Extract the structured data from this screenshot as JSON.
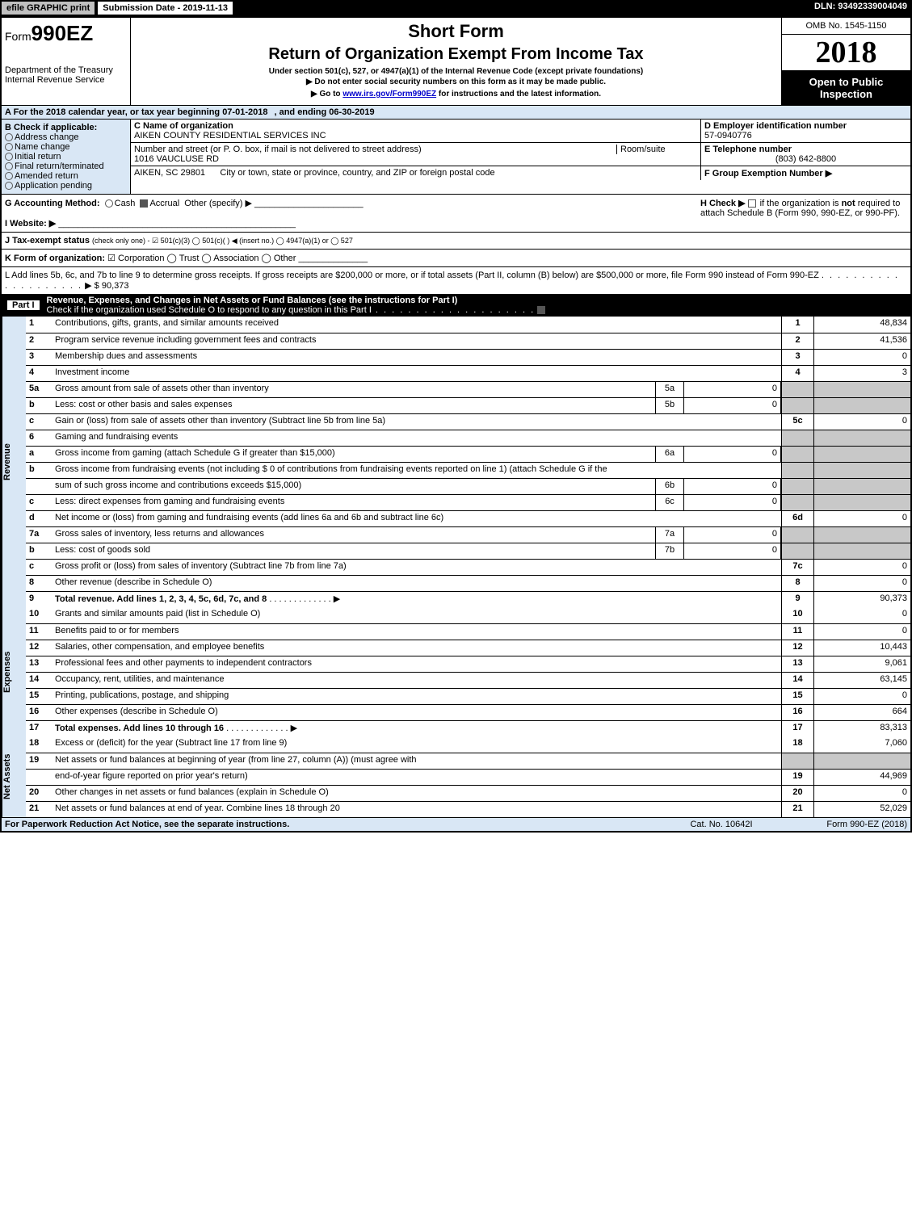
{
  "top": {
    "print": "efile GRAPHIC print",
    "sub_date_label": "Submission Date - 2019-11-13",
    "dln": "DLN: 93492339004049"
  },
  "header": {
    "form_prefix": "Form",
    "form_num": "990EZ",
    "short_form": "Short Form",
    "title": "Return of Organization Exempt From Income Tax",
    "subtitle": "Under section 501(c), 527, or 4947(a)(1) of the Internal Revenue Code (except private foundations)",
    "dept1": "Department of the Treasury",
    "dept2": "Internal Revenue Service",
    "notice1": "▶ Do not enter social security numbers on this form as it may be made public.",
    "notice2_pre": "▶ Go to ",
    "notice2_link": "www.irs.gov/Form990EZ",
    "notice2_post": " for instructions and the latest information.",
    "omb": "OMB No. 1545-1150",
    "year": "2018",
    "open": "Open to Public Inspection"
  },
  "lineA": {
    "label": "A  For the 2018 calendar year, or tax year beginning 07-01-2018",
    "ending": ", and ending 06-30-2019"
  },
  "sectionB": {
    "title": "B  Check if applicable:",
    "items": [
      "Address change",
      "Name change",
      "Initial return",
      "Final return/terminated",
      "Amended return",
      "Application pending"
    ]
  },
  "org": {
    "c_label": "C Name of organization",
    "name": "AIKEN COUNTY RESIDENTIAL SERVICES INC",
    "street_label": "Number and street (or P. O. box, if mail is not delivered to street address)",
    "street": "1016 VAUCLUSE RD",
    "room_label": "Room/suite",
    "city_label": "City or town, state or province, country, and ZIP or foreign postal code",
    "city": "AIKEN, SC  29801"
  },
  "right": {
    "d_label": "D Employer identification number",
    "d_val": "57-0940776",
    "e_label": "E Telephone number",
    "e_val": "(803) 642-8800",
    "f_label": "F Group Exemption Number ▶"
  },
  "g": {
    "label": "G Accounting Method:",
    "cash": "Cash",
    "accrual": "Accrual",
    "other": "Other (specify) ▶"
  },
  "h": {
    "label": "H  Check ▶",
    "txt1": "if the organization is ",
    "not": "not",
    "txt2": " required to attach Schedule B (Form 990, 990-EZ, or 990-PF)."
  },
  "i": {
    "label": "I Website: ▶"
  },
  "j": {
    "label": "J Tax-exempt status",
    "txt": "(check only one) -  ☑ 501(c)(3)  ◯ 501(c)(  ) ◀ (insert no.)  ◯ 4947(a)(1) or  ◯ 527"
  },
  "k": {
    "label": "K Form of organization:",
    "txt": "☑ Corporation   ◯ Trust   ◯ Association   ◯ Other"
  },
  "l": {
    "txt": "L Add lines 5b, 6c, and 7b to line 9 to determine gross receipts. If gross receipts are $200,000 or more, or if total assets (Part II, column (B) below) are $500,000 or more, file Form 990 instead of Form 990-EZ",
    "amount": "▶ $ 90,373"
  },
  "part1": {
    "label": "Part I",
    "title": "Revenue, Expenses, and Changes in Net Assets or Fund Balances (see the instructions for Part I)",
    "sub": "Check if the organization used Schedule O to respond to any question in this Part I"
  },
  "sections": {
    "revenue": "Revenue",
    "expenses": "Expenses",
    "netassets": "Net Assets"
  },
  "rows": [
    {
      "n": "1",
      "desc": "Contributions, gifts, grants, and similar amounts received",
      "box": "1",
      "val": "48,834"
    },
    {
      "n": "2",
      "desc": "Program service revenue including government fees and contracts",
      "box": "2",
      "val": "41,536"
    },
    {
      "n": "3",
      "desc": "Membership dues and assessments",
      "box": "3",
      "val": "0"
    },
    {
      "n": "4",
      "desc": "Investment income",
      "box": "4",
      "val": "3"
    },
    {
      "n": "5a",
      "desc": "Gross amount from sale of assets other than inventory",
      "in": "5a",
      "inval": "0"
    },
    {
      "n": "b",
      "desc": "Less: cost or other basis and sales expenses",
      "in": "5b",
      "inval": "0"
    },
    {
      "n": "c",
      "desc": "Gain or (loss) from sale of assets other than inventory (Subtract line 5b from line 5a)",
      "box": "5c",
      "val": "0"
    },
    {
      "n": "6",
      "desc": "Gaming and fundraising events"
    },
    {
      "n": "a",
      "desc": "Gross income from gaming (attach Schedule G if greater than $15,000)",
      "in": "6a",
      "inval": "0"
    },
    {
      "n": "b",
      "desc": "Gross income from fundraising events (not including $  0          of contributions from fundraising events reported on line 1) (attach Schedule G if the"
    },
    {
      "n": "",
      "desc": "sum of such gross income and contributions exceeds $15,000)",
      "in": "6b",
      "inval": "0"
    },
    {
      "n": "c",
      "desc": "Less: direct expenses from gaming and fundraising events",
      "in": "6c",
      "inval": "0"
    },
    {
      "n": "d",
      "desc": "Net income or (loss) from gaming and fundraising events (add lines 6a and 6b and subtract line 6c)",
      "box": "6d",
      "val": "0"
    },
    {
      "n": "7a",
      "desc": "Gross sales of inventory, less returns and allowances",
      "in": "7a",
      "inval": "0"
    },
    {
      "n": "b",
      "desc": "Less: cost of goods sold",
      "in": "7b",
      "inval": "0"
    },
    {
      "n": "c",
      "desc": "Gross profit or (loss) from sales of inventory (Subtract line 7b from line 7a)",
      "box": "7c",
      "val": "0"
    },
    {
      "n": "8",
      "desc": "Other revenue (describe in Schedule O)",
      "box": "8",
      "val": "0"
    },
    {
      "n": "9",
      "desc": "Total revenue. Add lines 1, 2, 3, 4, 5c, 6d, 7c, and 8",
      "box": "9",
      "val": "90,373",
      "bold": true,
      "arrow": true
    }
  ],
  "exp_rows": [
    {
      "n": "10",
      "desc": "Grants and similar amounts paid (list in Schedule O)",
      "box": "10",
      "val": "0"
    },
    {
      "n": "11",
      "desc": "Benefits paid to or for members",
      "box": "11",
      "val": "0"
    },
    {
      "n": "12",
      "desc": "Salaries, other compensation, and employee benefits",
      "box": "12",
      "val": "10,443"
    },
    {
      "n": "13",
      "desc": "Professional fees and other payments to independent contractors",
      "box": "13",
      "val": "9,061"
    },
    {
      "n": "14",
      "desc": "Occupancy, rent, utilities, and maintenance",
      "box": "14",
      "val": "63,145"
    },
    {
      "n": "15",
      "desc": "Printing, publications, postage, and shipping",
      "box": "15",
      "val": "0"
    },
    {
      "n": "16",
      "desc": "Other expenses (describe in Schedule O)",
      "box": "16",
      "val": "664"
    },
    {
      "n": "17",
      "desc": "Total expenses. Add lines 10 through 16",
      "box": "17",
      "val": "83,313",
      "bold": true,
      "arrow": true
    }
  ],
  "na_rows": [
    {
      "n": "18",
      "desc": "Excess or (deficit) for the year (Subtract line 17 from line 9)",
      "box": "18",
      "val": "7,060"
    },
    {
      "n": "19",
      "desc": "Net assets or fund balances at beginning of year (from line 27, column (A)) (must agree with"
    },
    {
      "n": "",
      "desc": "end-of-year figure reported on prior year's return)",
      "box": "19",
      "val": "44,969"
    },
    {
      "n": "20",
      "desc": "Other changes in net assets or fund balances (explain in Schedule O)",
      "box": "20",
      "val": "0"
    },
    {
      "n": "21",
      "desc": "Net assets or fund balances at end of year. Combine lines 18 through 20",
      "box": "21",
      "val": "52,029"
    }
  ],
  "footer": {
    "left": "For Paperwork Reduction Act Notice, see the separate instructions.",
    "mid": "Cat. No. 10642I",
    "right": "Form 990-EZ (2018)"
  }
}
